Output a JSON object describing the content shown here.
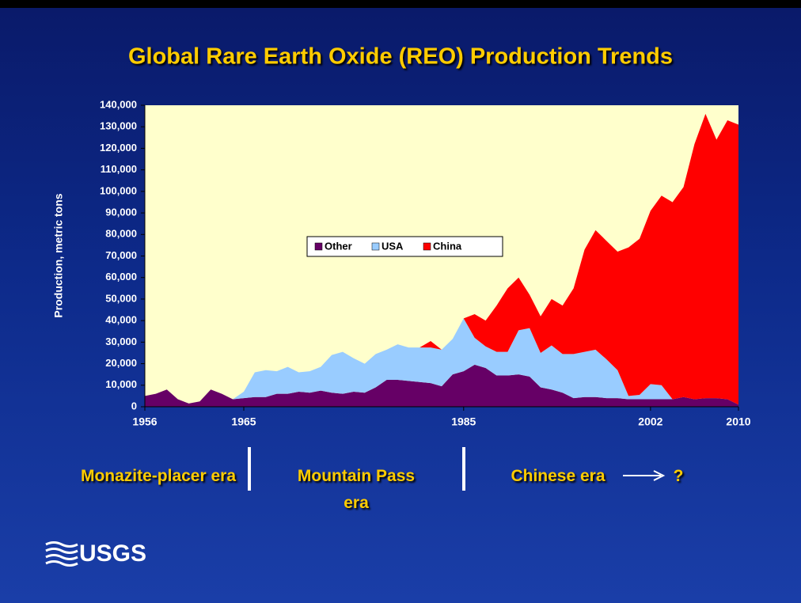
{
  "chart_data": {
    "type": "stacked_area",
    "title": "Global Rare Earth Oxide (REO) Production Trends",
    "y_label": "Production, metric tons",
    "x": [
      1956,
      1957,
      1958,
      1959,
      1960,
      1961,
      1962,
      1963,
      1964,
      1965,
      1966,
      1967,
      1968,
      1969,
      1970,
      1971,
      1972,
      1973,
      1974,
      1975,
      1976,
      1977,
      1978,
      1979,
      1980,
      1981,
      1982,
      1983,
      1984,
      1985,
      1986,
      1987,
      1988,
      1989,
      1990,
      1991,
      1992,
      1993,
      1994,
      1995,
      1996,
      1997,
      1998,
      1999,
      2000,
      2001,
      2002,
      2003,
      2004,
      2005,
      2006,
      2007,
      2008,
      2009,
      2010
    ],
    "xlim": [
      1956,
      2010
    ],
    "xticks": [
      1956,
      1965,
      1985,
      2002,
      2010
    ],
    "ylim": [
      0,
      140000
    ],
    "yticks": [
      0,
      {
        "value": 10000,
        "label": "10,000"
      },
      {
        "value": 20000,
        "label": "20,000"
      },
      {
        "value": 30000,
        "label": "30,000"
      },
      {
        "value": 40000,
        "label": "40,000"
      },
      {
        "value": 50000,
        "label": "50,000"
      },
      {
        "value": 60000,
        "label": "60,000"
      },
      {
        "value": 70000,
        "label": "70,000"
      },
      {
        "value": 80000,
        "label": "80,000"
      },
      {
        "value": 90000,
        "label": "90,000"
      },
      {
        "value": 100000,
        "label": "100,000"
      },
      {
        "value": 110000,
        "label": "110,000"
      },
      {
        "value": 120000,
        "label": "120,000"
      },
      {
        "value": 130000,
        "label": "130,000"
      },
      {
        "value": 140000,
        "label": "140,000"
      }
    ],
    "series": [
      {
        "name": "Other",
        "color": "#660066",
        "values": [
          5000,
          6000,
          8000,
          3500,
          1500,
          2500,
          8000,
          6000,
          3500,
          4000,
          4500,
          4500,
          6000,
          6000,
          7000,
          6500,
          7500,
          6500,
          6000,
          7000,
          6500,
          9000,
          12500,
          12500,
          12000,
          11500,
          11000,
          9500,
          15000,
          16500,
          19500,
          18000,
          14500,
          14500,
          15000,
          14000,
          9000,
          8000,
          6500,
          4000,
          4500,
          4500,
          4000,
          4000,
          3500,
          3500,
          3500,
          3500,
          3500,
          4500,
          3500,
          4000,
          4000,
          3500,
          1000
        ]
      },
      {
        "name": "USA",
        "color": "#99ccff",
        "values": [
          0,
          0,
          0,
          0,
          0,
          0,
          0,
          0,
          0,
          3000,
          11500,
          12500,
          10500,
          12500,
          9000,
          10000,
          11000,
          17500,
          19500,
          15500,
          13500,
          15500,
          14000,
          16500,
          15500,
          16000,
          16500,
          17000,
          16500,
          24500,
          12500,
          10000,
          11000,
          11000,
          20500,
          22500,
          16000,
          20500,
          18000,
          20500,
          21000,
          22000,
          18000,
          13000,
          1500,
          2000,
          7000,
          6500,
          0,
          0,
          0,
          0,
          0,
          0,
          0
        ]
      },
      {
        "name": "China",
        "color": "#ff0000",
        "values": [
          0,
          0,
          0,
          0,
          0,
          0,
          0,
          0,
          0,
          0,
          0,
          0,
          0,
          0,
          0,
          0,
          0,
          0,
          0,
          0,
          0,
          0,
          0,
          0,
          0,
          0,
          3000,
          0,
          0,
          0,
          11000,
          12000,
          21500,
          29500,
          24500,
          15500,
          17000,
          21500,
          22500,
          30500,
          47500,
          55500,
          55000,
          55000,
          69000,
          72500,
          80500,
          88000,
          91500,
          97500,
          118500,
          132000,
          120000,
          129500,
          130000
        ]
      }
    ],
    "plot_background": "#ffffcc",
    "legend": "center",
    "annotations": [
      "Monazite-placer era",
      "Mountain Pass era",
      "Chinese era",
      "?"
    ],
    "logo": "USGS"
  }
}
